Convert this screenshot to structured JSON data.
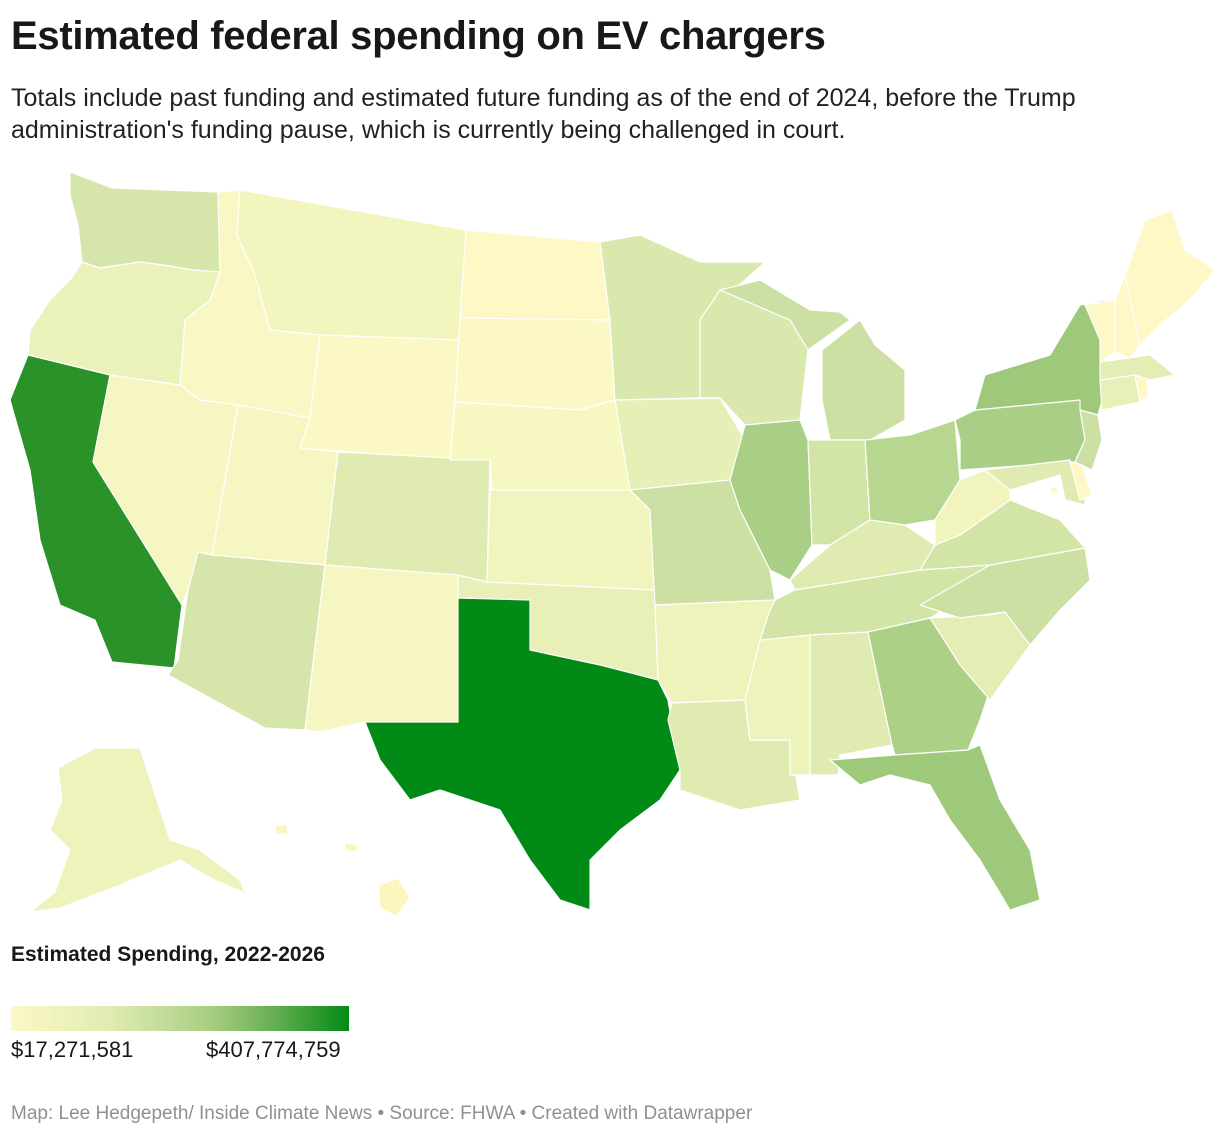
{
  "title": "Estimated federal spending on EV chargers",
  "subtitle": "Totals include past funding and estimated future funding as of the end of 2024, before the Trump administration's funding pause, which is currently being challenged in court.",
  "legend": {
    "title": "Estimated Spending, 2022-2026",
    "min_label": "$17,271,581",
    "max_label": "$407,774,759",
    "color_min": "#fdf8c6",
    "color_max": "#028a16"
  },
  "footer": "Map: Lee Hedgepeth/ Inside Climate News • Source: FHWA • Created with Datawrapper",
  "states": {
    "TX": "#028a16",
    "CA": "#2a9229",
    "FL": "#9ec97b",
    "NY": "#9ec97b",
    "PA": "#a8cf85",
    "IL": "#a8cf85",
    "GA": "#abd086",
    "OH": "#b7d68f",
    "MI": "#cbe0a2",
    "NC": "#cbe0a2",
    "NJ": "#cbe0a2",
    "MO": "#cbe0a2",
    "VA": "#d3e4a7",
    "IN": "#d3e4a7",
    "TN": "#d3e4a7",
    "WA": "#d6e6aa",
    "AZ": "#d6e6aa",
    "MN": "#d9e8ac",
    "WI": "#d9e8ac",
    "CO": "#dfebb1",
    "AL": "#dfebb1",
    "LA": "#dfebb1",
    "KY": "#dfebb1",
    "MD": "#dfebb1",
    "SC": "#e3edb4",
    "MA": "#e3edb4",
    "IA": "#e6efb6",
    "OK": "#e8f0b8",
    "CT": "#e8f0b8",
    "OR": "#eaf1b9",
    "MS": "#eef3bc",
    "AR": "#eef3bc",
    "KS": "#f1f4bd",
    "WV": "#f1f4bd",
    "AK": "#eef3bc",
    "NV": "#f5f6c1",
    "UT": "#f5f6c1",
    "NM": "#f5f6c1",
    "MT": "#f3f5bf",
    "NE": "#f7f7c2",
    "ID": "#f9f7c3",
    "WY": "#fbf8c5",
    "ND": "#fdf8c6",
    "SD": "#fbf8c5",
    "ME": "#fdf8c6",
    "NH": "#fdf8c6",
    "VT": "#fdf8c6",
    "RI": "#fdf8c6",
    "DE": "#fdf8c6",
    "DC": "#fdf8c6",
    "HI": "#fcf5c0"
  }
}
